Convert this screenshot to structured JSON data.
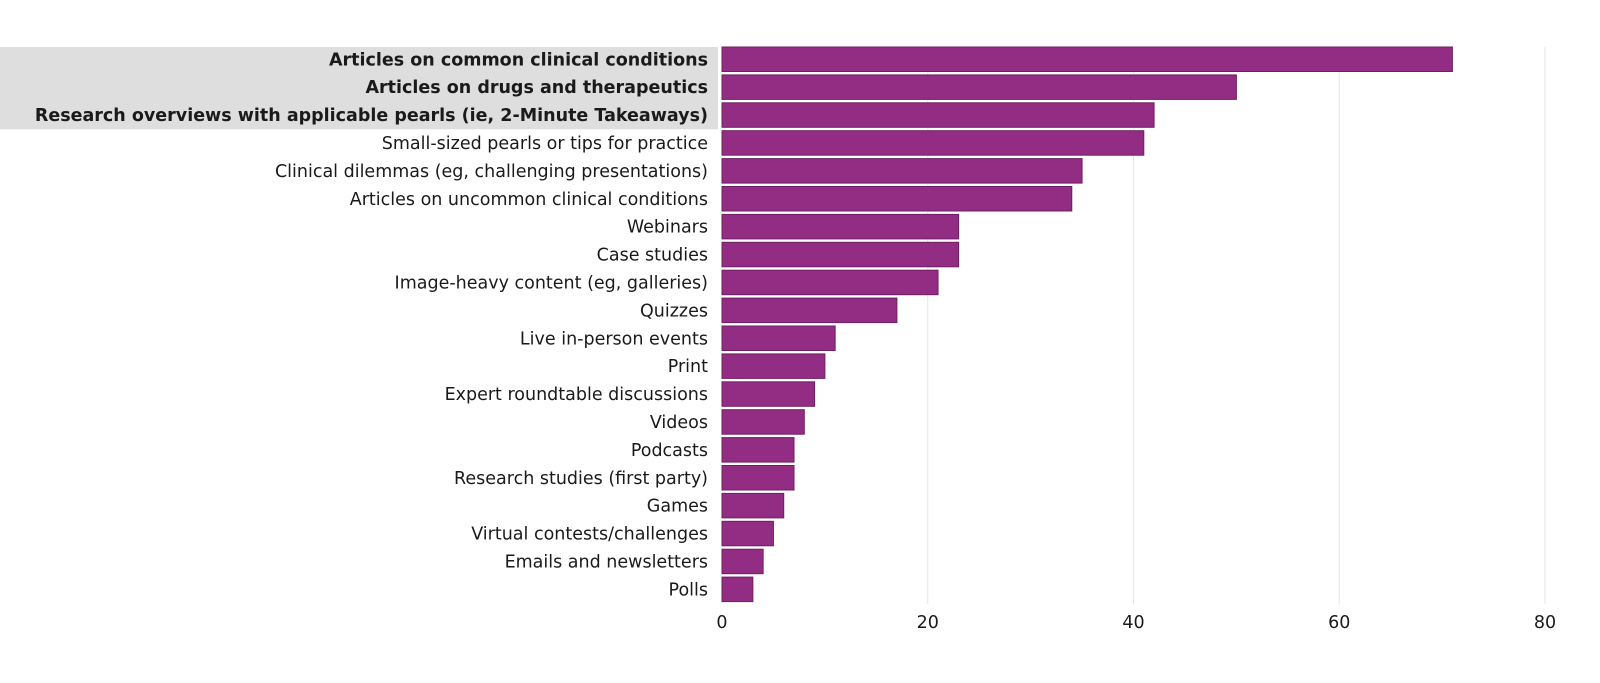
{
  "chart_data": {
    "type": "bar",
    "orientation": "horizontal",
    "categories": [
      "Articles on common clinical conditions",
      "Articles on drugs and therapeutics",
      "Research overviews with applicable pearls (ie, 2-Minute Takeaways)",
      "Small-sized pearls or tips for practice",
      "Clinical dilemmas (eg, challenging presentations)",
      "Articles on uncommon clinical conditions",
      "Webinars",
      "Case studies",
      "Image-heavy content (eg, galleries)",
      "Quizzes",
      "Live in-person events",
      "Print",
      "Expert roundtable discussions",
      "Videos",
      "Podcasts",
      "Research studies (first party)",
      "Games",
      "Virtual contests/challenges",
      "Emails and newsletters",
      "Polls"
    ],
    "values": [
      71,
      50,
      42,
      41,
      35,
      34,
      23,
      23,
      21,
      17,
      11,
      10,
      9,
      8,
      7,
      7,
      6,
      5,
      4,
      3
    ],
    "highlighted_categories": [
      0,
      1,
      2
    ],
    "xlim": [
      0,
      80
    ],
    "xticks": [
      0,
      20,
      40,
      60,
      80
    ],
    "grid": "vertical",
    "legend": "none",
    "title": "",
    "xlabel": "",
    "ylabel": "",
    "colors": {
      "bar": "#922d83",
      "bar_stroke": "#6e1f63",
      "highlight_band": "#dedede",
      "grid": "#e6e6e6",
      "text": "#1a1a1a"
    }
  }
}
